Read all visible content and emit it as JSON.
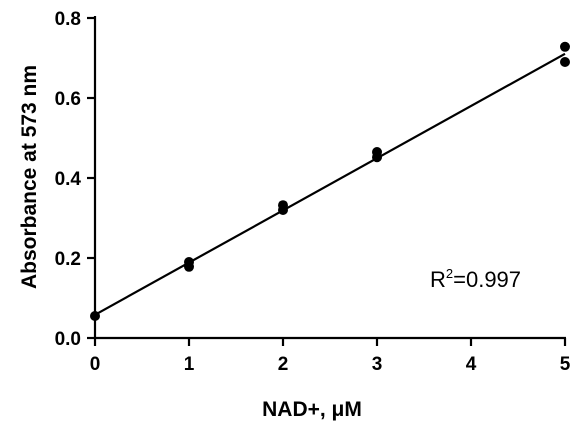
{
  "chart_data": {
    "type": "scatter",
    "xlabel": "NAD+, μM",
    "ylabel": "Absorbance at 573 nm",
    "xlim": [
      0,
      5
    ],
    "ylim": [
      0,
      0.8
    ],
    "xticks": [
      "0",
      "1",
      "2",
      "3",
      "4",
      "5"
    ],
    "yticks": [
      "0.0",
      "0.2",
      "0.4",
      "0.6",
      "0.8"
    ],
    "points": [
      {
        "x": 0,
        "y": 0.055
      },
      {
        "x": 1,
        "y": 0.19
      },
      {
        "x": 1,
        "y": 0.178
      },
      {
        "x": 2,
        "y": 0.332
      },
      {
        "x": 2,
        "y": 0.32
      },
      {
        "x": 3,
        "y": 0.465
      },
      {
        "x": 3,
        "y": 0.452
      },
      {
        "x": 5,
        "y": 0.728
      },
      {
        "x": 5,
        "y": 0.69
      }
    ],
    "fit_line": {
      "intercept": 0.058,
      "slope": 0.1305
    },
    "annotation": {
      "prefix": "R",
      "superscript": "2",
      "suffix": "=0.997"
    },
    "grid": false
  }
}
